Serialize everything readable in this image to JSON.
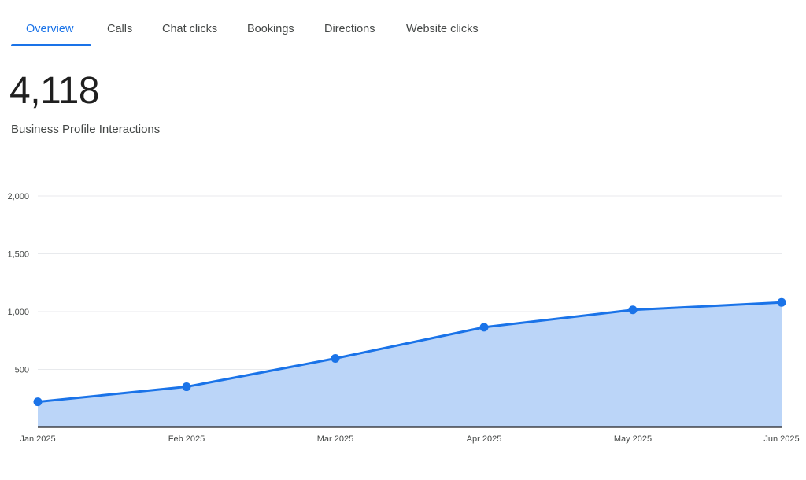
{
  "tabs": [
    {
      "label": "Overview",
      "active": true
    },
    {
      "label": "Calls",
      "active": false
    },
    {
      "label": "Chat clicks",
      "active": false
    },
    {
      "label": "Bookings",
      "active": false
    },
    {
      "label": "Directions",
      "active": false
    },
    {
      "label": "Website clicks",
      "active": false
    }
  ],
  "metric": {
    "value": "4,118",
    "label": "Business Profile Interactions"
  },
  "colors": {
    "accent": "#1a73e8",
    "area_fill": "#bbd5f8",
    "grid": "#e8eaed",
    "axis": "#202124"
  },
  "chart_data": {
    "type": "area",
    "x": [
      "Jan 2025",
      "Feb 2025",
      "Mar 2025",
      "Apr 2025",
      "May 2025",
      "Jun 2025"
    ],
    "values": [
      220,
      350,
      595,
      865,
      1015,
      1080
    ],
    "yticks": [
      "2,000",
      "1,500",
      "1,000",
      "500"
    ],
    "ytick_values": [
      2000,
      1500,
      1000,
      500
    ],
    "ylim": [
      0,
      2000
    ],
    "grid": true,
    "markers": true
  }
}
